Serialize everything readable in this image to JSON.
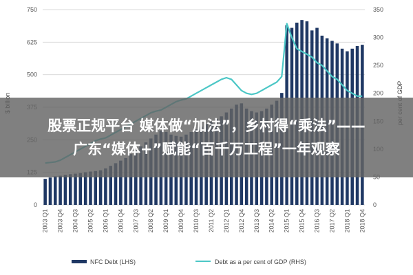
{
  "headline": {
    "line1": "股票正规平台 媒体做“加法”，乡村得“乘法”——",
    "line2": "广东“媒体+”赋能“百千万工程”一年观察"
  },
  "colors": {
    "bar": "#1f3864",
    "line": "#4cc7c6",
    "grid": "#d9d9d9",
    "overlay": "#646464"
  },
  "chart_data": {
    "type": "bar",
    "title": "",
    "y_left": {
      "label": "$ billion",
      "ticks": [
        "0",
        "125",
        "250",
        "375",
        "500",
        "625",
        "750"
      ],
      "lim": [
        0,
        750
      ]
    },
    "y_right": {
      "label": "per cent of GDP",
      "ticks": [
        "0",
        "50",
        "100",
        "150",
        "200",
        "250",
        "300",
        "350"
      ],
      "lim": [
        0,
        350
      ]
    },
    "x_tick_labels": [
      "2003 Q1",
      "2003 Q4",
      "2004 Q3",
      "2005 Q2",
      "2006 Q1",
      "2006 Q4",
      "2007 Q3",
      "2008 Q2",
      "2009 Q1",
      "2009 Q4",
      "2010 Q3",
      "2011 Q2",
      "2012 Q1",
      "2012 Q4",
      "2013 Q3",
      "2014 Q2",
      "2015 Q1",
      "2015 Q4",
      "2016 Q3",
      "2017 Q2",
      "2018 Q1",
      "2018 Q4"
    ],
    "x": [
      "2003 Q1",
      "2003 Q2",
      "2003 Q3",
      "2003 Q4",
      "2004 Q1",
      "2004 Q2",
      "2004 Q3",
      "2004 Q4",
      "2005 Q1",
      "2005 Q2",
      "2005 Q3",
      "2005 Q4",
      "2006 Q1",
      "2006 Q2",
      "2006 Q3",
      "2006 Q4",
      "2007 Q1",
      "2007 Q2",
      "2007 Q3",
      "2007 Q4",
      "2008 Q1",
      "2008 Q2",
      "2008 Q3",
      "2008 Q4",
      "2009 Q1",
      "2009 Q2",
      "2009 Q3",
      "2009 Q4",
      "2010 Q1",
      "2010 Q2",
      "2010 Q3",
      "2010 Q4",
      "2011 Q1",
      "2011 Q2",
      "2011 Q3",
      "2011 Q4",
      "2012 Q1",
      "2012 Q2",
      "2012 Q3",
      "2012 Q4",
      "2013 Q1",
      "2013 Q2",
      "2013 Q3",
      "2013 Q4",
      "2014 Q1",
      "2014 Q2",
      "2014 Q3",
      "2014 Q4",
      "2015 Q1",
      "2015 Q2",
      "2015 Q3",
      "2015 Q4",
      "2016 Q1",
      "2016 Q2",
      "2016 Q3",
      "2016 Q4",
      "2017 Q1",
      "2017 Q2",
      "2017 Q3",
      "2017 Q4",
      "2018 Q1",
      "2018 Q2",
      "2018 Q3",
      "2018 Q4"
    ],
    "series": [
      {
        "name": "NFC Debt (LHS)",
        "axis": "left",
        "type": "bar",
        "values": [
          100,
          105,
          110,
          112,
          115,
          118,
          120,
          122,
          125,
          128,
          130,
          133,
          140,
          150,
          160,
          170,
          180,
          195,
          210,
          225,
          240,
          255,
          270,
          285,
          280,
          270,
          265,
          262,
          270,
          280,
          290,
          300,
          310,
          320,
          330,
          340,
          355,
          370,
          385,
          390,
          370,
          360,
          355,
          360,
          370,
          385,
          400,
          430,
          690,
          680,
          700,
          710,
          705,
          670,
          680,
          650,
          640,
          630,
          620,
          600,
          590,
          600,
          610,
          615
        ]
      },
      {
        "name": "Debt as a per cent of GDP (RHS)",
        "axis": "right",
        "type": "line",
        "values": [
          75,
          76,
          77,
          80,
          85,
          90,
          95,
          100,
          105,
          110,
          115,
          118,
          120,
          125,
          130,
          135,
          140,
          145,
          150,
          155,
          160,
          165,
          168,
          170,
          175,
          180,
          185,
          188,
          190,
          195,
          200,
          205,
          210,
          215,
          220,
          225,
          228,
          225,
          215,
          205,
          200,
          198,
          200,
          205,
          210,
          215,
          220,
          230,
          325,
          300,
          280,
          275,
          270,
          265,
          255,
          250,
          240,
          230,
          225,
          215,
          205,
          200,
          195,
          195
        ]
      }
    ],
    "legend": {
      "position": "bottom"
    },
    "grid": true
  }
}
